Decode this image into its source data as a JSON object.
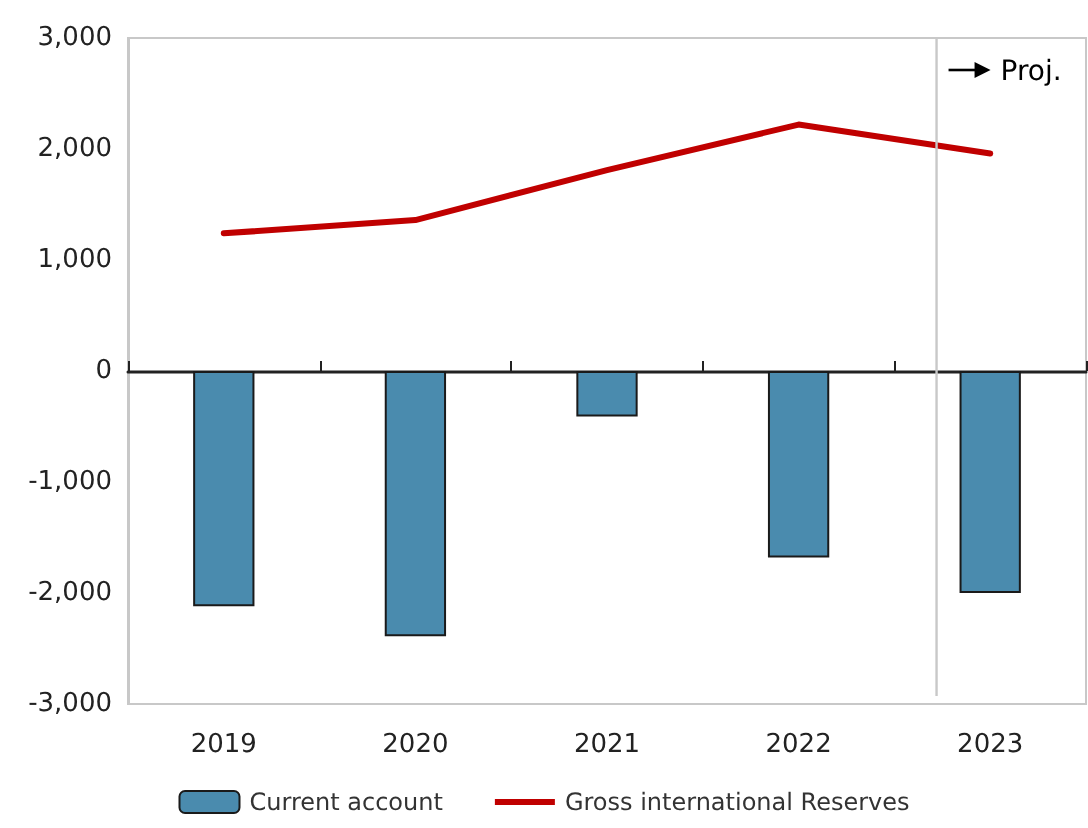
{
  "chart_data": {
    "type": "bar",
    "categories": [
      "2019",
      "2020",
      "2021",
      "2022",
      "2023"
    ],
    "series": [
      {
        "name": "Current account",
        "color": "#4a8bae",
        "values": [
          -2120,
          -2390,
          -410,
          -1680,
          -2000
        ]
      },
      {
        "name": "Gross international Reserves",
        "type": "line",
        "color": "#c00000",
        "values": [
          1240,
          1360,
          1810,
          2220,
          1960
        ]
      }
    ],
    "ylim": [
      -3000,
      3000
    ],
    "yticks": [
      {
        "value": -3000,
        "label": "-3,000"
      },
      {
        "value": -2000,
        "label": "-2,000"
      },
      {
        "value": -1000,
        "label": "-1,000"
      },
      0,
      {
        "value": 1000,
        "label": "1,000"
      },
      {
        "value": 2000,
        "label": "2,000"
      },
      {
        "value": 3000,
        "label": "3,000"
      }
    ],
    "ref_lines": [
      {
        "axis": "x",
        "value": "2023",
        "label": "Proj.",
        "color": "#c8c8c8"
      }
    ],
    "legend": "bottom",
    "marker": "none",
    "line_style": "solid"
  }
}
